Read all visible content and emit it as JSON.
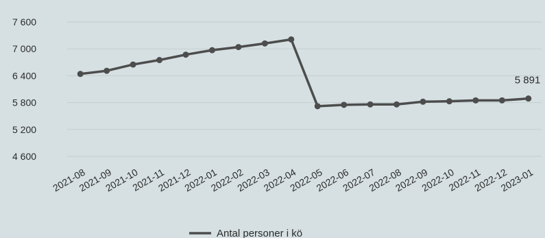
{
  "chart_data": {
    "type": "line",
    "categories": [
      "2021-08",
      "2021-09",
      "2021-10",
      "2021-11",
      "2021-12",
      "2022-01",
      "2022-02",
      "2022-03",
      "2022-04",
      "2022-05",
      "2022-06",
      "2022-07",
      "2022-08",
      "2022-09",
      "2022-10",
      "2022-11",
      "2022-12",
      "2023-01"
    ],
    "series": [
      {
        "name": "Antal personer i kö",
        "values": [
          6440,
          6510,
          6650,
          6750,
          6870,
          6970,
          7040,
          7120,
          7210,
          5720,
          5750,
          5760,
          5760,
          5820,
          5830,
          5850,
          5850,
          5891
        ]
      }
    ],
    "y_ticks": [
      "7 600",
      "7 000",
      "6 400",
      "5 800",
      "5 200",
      "4 600"
    ],
    "y_tick_values": [
      7600,
      7000,
      6400,
      5800,
      5200,
      4600
    ],
    "ylim": [
      4600,
      7600
    ],
    "data_labels": [
      {
        "index": 17,
        "text": "5 891"
      }
    ],
    "grid": true,
    "legend": "bottom-center",
    "colors": {
      "line": "#4d4d4d",
      "grid": "#c3cdd0",
      "background": "#d6e0e2"
    }
  }
}
